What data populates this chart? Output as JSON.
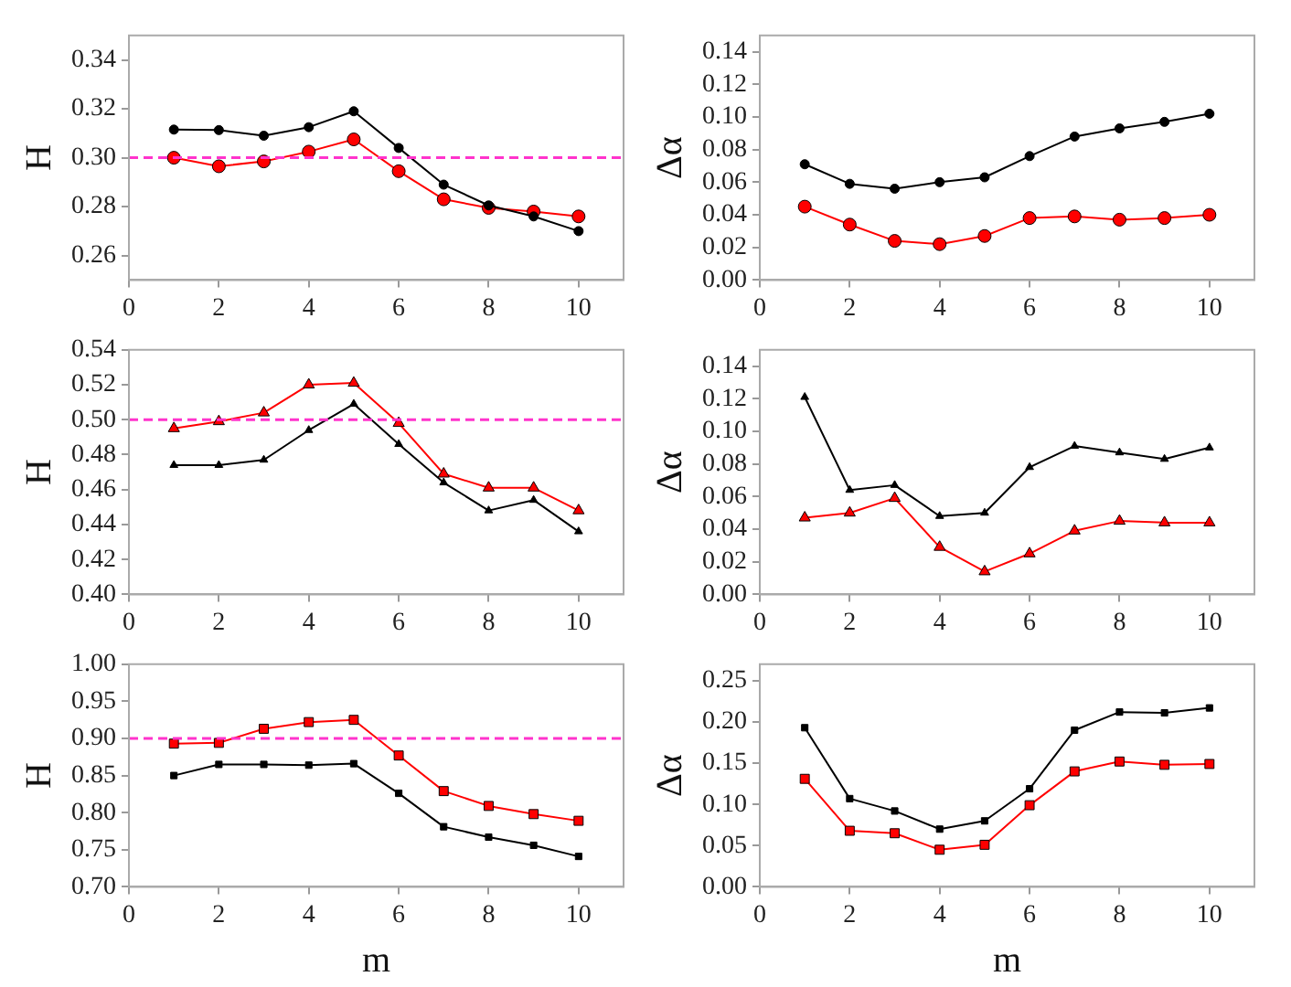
{
  "chart_data": [
    {
      "type": "line",
      "ylabel": "H",
      "x": [
        1,
        2,
        3,
        4,
        5,
        6,
        7,
        8,
        9,
        10
      ],
      "xlim": [
        0,
        11
      ],
      "xticks": [
        0,
        2,
        4,
        6,
        8,
        10
      ],
      "ylim": [
        0.25,
        0.35
      ],
      "yticks": [
        0.26,
        0.28,
        {
          "value": 0.3,
          "label": "0.30"
        },
        0.32,
        0.34
      ],
      "marker": "circle",
      "ref_lines": [
        {
          "axis": "y",
          "value": 0.3,
          "color": "#ff33cc",
          "line_style": "dashed"
        }
      ],
      "series": [
        {
          "color": "#000000",
          "values": [
            0.3115,
            0.3113,
            0.309,
            0.3125,
            0.319,
            0.304,
            0.289,
            0.2805,
            0.276,
            0.27
          ]
        },
        {
          "color": "#ff0000",
          "values": [
            0.3,
            0.2965,
            0.2985,
            0.3025,
            0.3075,
            0.2945,
            0.283,
            0.2795,
            0.278,
            0.276
          ]
        }
      ]
    },
    {
      "type": "line",
      "ylabel": "Δα",
      "x": [
        1,
        2,
        3,
        4,
        5,
        6,
        7,
        8,
        9,
        10
      ],
      "xlim": [
        0,
        11
      ],
      "xticks": [
        0,
        2,
        4,
        6,
        8,
        10
      ],
      "ylim": [
        0,
        0.15
      ],
      "yticks": [
        {
          "value": 0,
          "label": "0.00"
        },
        0.02,
        0.04,
        0.06,
        0.08,
        {
          "value": 0.1,
          "label": "0.10"
        },
        0.12,
        0.14
      ],
      "marker": "circle",
      "series": [
        {
          "color": "#000000",
          "values": [
            0.071,
            0.059,
            0.056,
            0.06,
            0.063,
            0.076,
            0.088,
            0.093,
            0.097,
            0.102
          ]
        },
        {
          "color": "#ff0000",
          "values": [
            0.045,
            0.034,
            0.024,
            0.022,
            0.027,
            0.038,
            0.039,
            0.037,
            0.038,
            0.04
          ]
        }
      ]
    },
    {
      "type": "line",
      "ylabel": "H",
      "x": [
        1,
        2,
        3,
        4,
        5,
        6,
        7,
        8,
        9,
        10
      ],
      "xlim": [
        0,
        11
      ],
      "xticks": [
        0,
        2,
        4,
        6,
        8,
        10
      ],
      "ylim": [
        0.4,
        0.54
      ],
      "yticks": [
        {
          "value": 0.4,
          "label": "0.40"
        },
        0.42,
        0.44,
        0.46,
        0.48,
        {
          "value": 0.5,
          "label": "0.50"
        },
        0.52,
        0.54
      ],
      "marker": "triangle",
      "ref_lines": [
        {
          "axis": "y",
          "value": 0.5,
          "color": "#ff33cc",
          "line_style": "dashed"
        }
      ],
      "series": [
        {
          "color": "#000000",
          "values": [
            0.474,
            0.474,
            0.477,
            0.494,
            0.509,
            0.486,
            0.464,
            0.448,
            0.454,
            0.436
          ]
        },
        {
          "color": "#ff0000",
          "values": [
            0.495,
            0.499,
            0.504,
            0.52,
            0.521,
            0.498,
            0.469,
            0.461,
            0.461,
            0.448
          ]
        }
      ]
    },
    {
      "type": "line",
      "ylabel": "Δα",
      "x": [
        1,
        2,
        3,
        4,
        5,
        6,
        7,
        8,
        9,
        10
      ],
      "xlim": [
        0,
        11
      ],
      "xticks": [
        0,
        2,
        4,
        6,
        8,
        10
      ],
      "ylim": [
        0,
        0.15
      ],
      "yticks": [
        {
          "value": 0,
          "label": "0.00"
        },
        0.02,
        0.04,
        0.06,
        0.08,
        {
          "value": 0.1,
          "label": "0.10"
        },
        0.12,
        0.14
      ],
      "marker": "triangle",
      "series": [
        {
          "color": "#000000",
          "values": [
            0.121,
            0.064,
            0.067,
            0.048,
            0.05,
            0.078,
            0.091,
            0.087,
            0.083,
            0.09
          ]
        },
        {
          "color": "#ff0000",
          "values": [
            0.047,
            0.05,
            0.059,
            0.029,
            0.014,
            0.025,
            0.039,
            0.045,
            0.044,
            0.044
          ]
        }
      ]
    },
    {
      "type": "line",
      "xlabel": "m",
      "ylabel": "H",
      "x": [
        1,
        2,
        3,
        4,
        5,
        6,
        7,
        8,
        9,
        10
      ],
      "xlim": [
        0,
        11
      ],
      "xticks": [
        0,
        2,
        4,
        6,
        8,
        10
      ],
      "ylim": [
        0.7,
        1
      ],
      "yticks": [
        {
          "value": 0.7,
          "label": "0.70"
        },
        0.75,
        {
          "value": 0.8,
          "label": "0.80"
        },
        0.85,
        {
          "value": 0.9,
          "label": "0.90"
        },
        0.95,
        {
          "value": 1,
          "label": "1.00"
        }
      ],
      "marker": "square",
      "ref_lines": [
        {
          "axis": "y",
          "value": 0.9,
          "color": "#ff33cc",
          "line_style": "dashed"
        }
      ],
      "series": [
        {
          "color": "#000000",
          "values": [
            0.85,
            0.865,
            0.865,
            0.864,
            0.866,
            0.826,
            0.781,
            0.767,
            0.756,
            0.741
          ]
        },
        {
          "color": "#ff0000",
          "values": [
            0.893,
            0.894,
            0.913,
            0.922,
            0.925,
            0.877,
            0.829,
            0.809,
            0.798,
            0.789
          ]
        }
      ]
    },
    {
      "type": "line",
      "xlabel": "m",
      "ylabel": "Δα",
      "x": [
        1,
        2,
        3,
        4,
        5,
        6,
        7,
        8,
        9,
        10
      ],
      "xlim": [
        0,
        11
      ],
      "xticks": [
        0,
        2,
        4,
        6,
        8,
        10
      ],
      "ylim": [
        0,
        0.27
      ],
      "yticks": [
        {
          "value": 0,
          "label": "0.00"
        },
        0.05,
        {
          "value": 0.1,
          "label": "0.10"
        },
        0.15,
        {
          "value": 0.2,
          "label": "0.20"
        },
        0.25
      ],
      "marker": "square",
      "series": [
        {
          "color": "#000000",
          "values": [
            0.193,
            0.107,
            0.092,
            0.07,
            0.08,
            0.119,
            0.19,
            0.212,
            0.211,
            0.217
          ]
        },
        {
          "color": "#ff0000",
          "values": [
            0.131,
            0.068,
            0.065,
            0.045,
            0.051,
            0.099,
            0.14,
            0.152,
            0.148,
            0.149
          ]
        }
      ]
    }
  ]
}
